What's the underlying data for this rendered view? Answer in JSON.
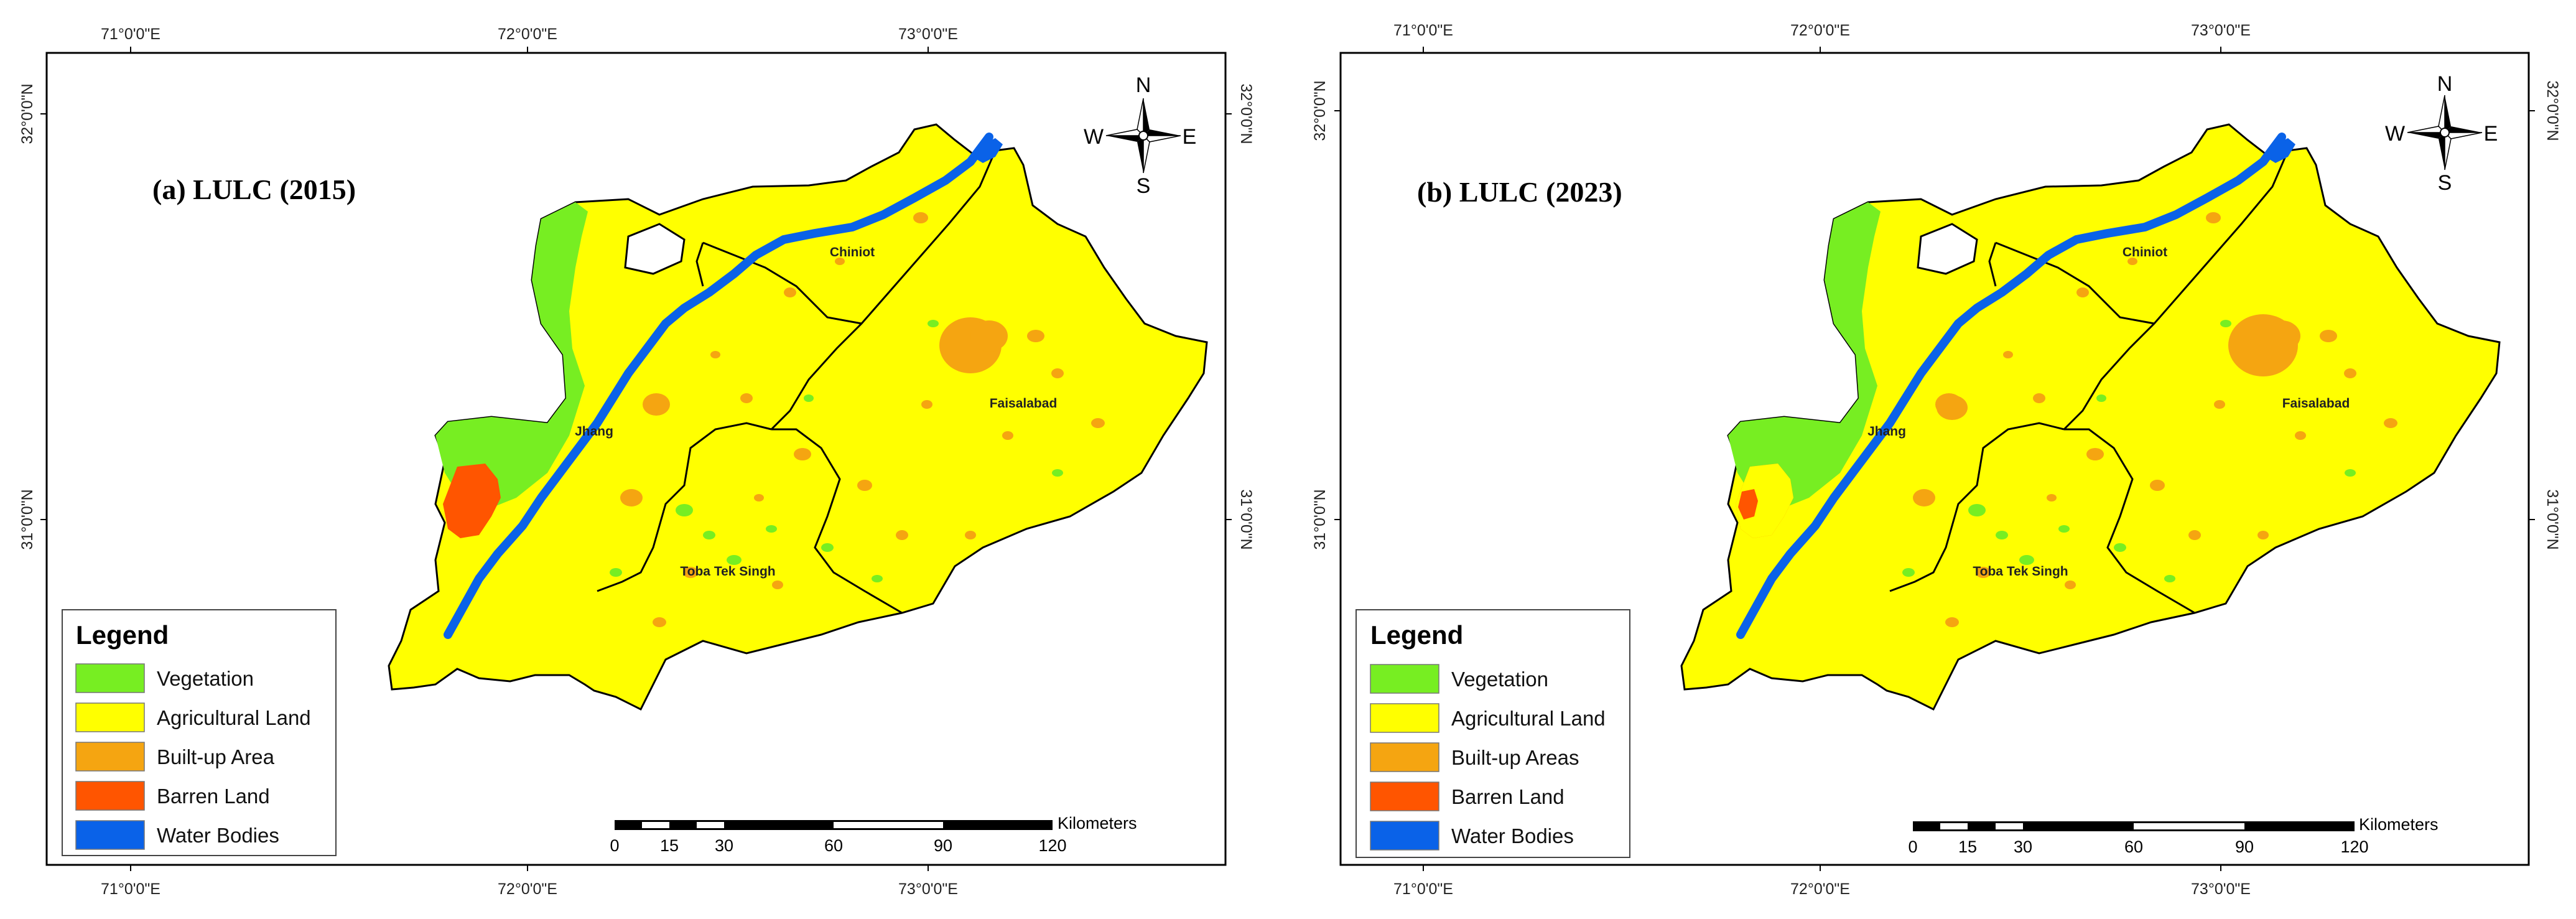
{
  "panels": [
    {
      "title": "(a) LULC (2015)",
      "legend_labels": [
        "Vegetation",
        "Agricultural Land",
        "Built-up Area",
        "Barren Land",
        "Water Bodies"
      ]
    },
    {
      "title": "(b) LULC (2023)",
      "legend_labels": [
        "Vegetation",
        "Agricultural Land",
        "Built-up Areas",
        "Barren Land",
        "Water Bodies"
      ]
    }
  ],
  "legend": {
    "title": "Legend"
  },
  "lon_ticks": [
    "71°0'0\"E",
    "72°0'0\"E",
    "73°0'0\"E"
  ],
  "lat_ticks": [
    "32°0'0\"N",
    "31°0'0\"N"
  ],
  "compass": {
    "n": "N",
    "s": "S",
    "e": "E",
    "w": "W"
  },
  "scale": {
    "unit": "Kilometers",
    "ticks": [
      "0",
      "15",
      "30",
      "60",
      "90",
      "120"
    ]
  },
  "cities": {
    "chiniot": "Chiniot",
    "jhang": "Jhang",
    "faisalabad": "Faisalabad",
    "toba": "Toba Tek Singh"
  },
  "colors": {
    "vegetation": "#77ee22",
    "agricultural": "#ffff00",
    "builtup": "#f5a511",
    "barren": "#ff5500",
    "water": "#0a62e8"
  }
}
